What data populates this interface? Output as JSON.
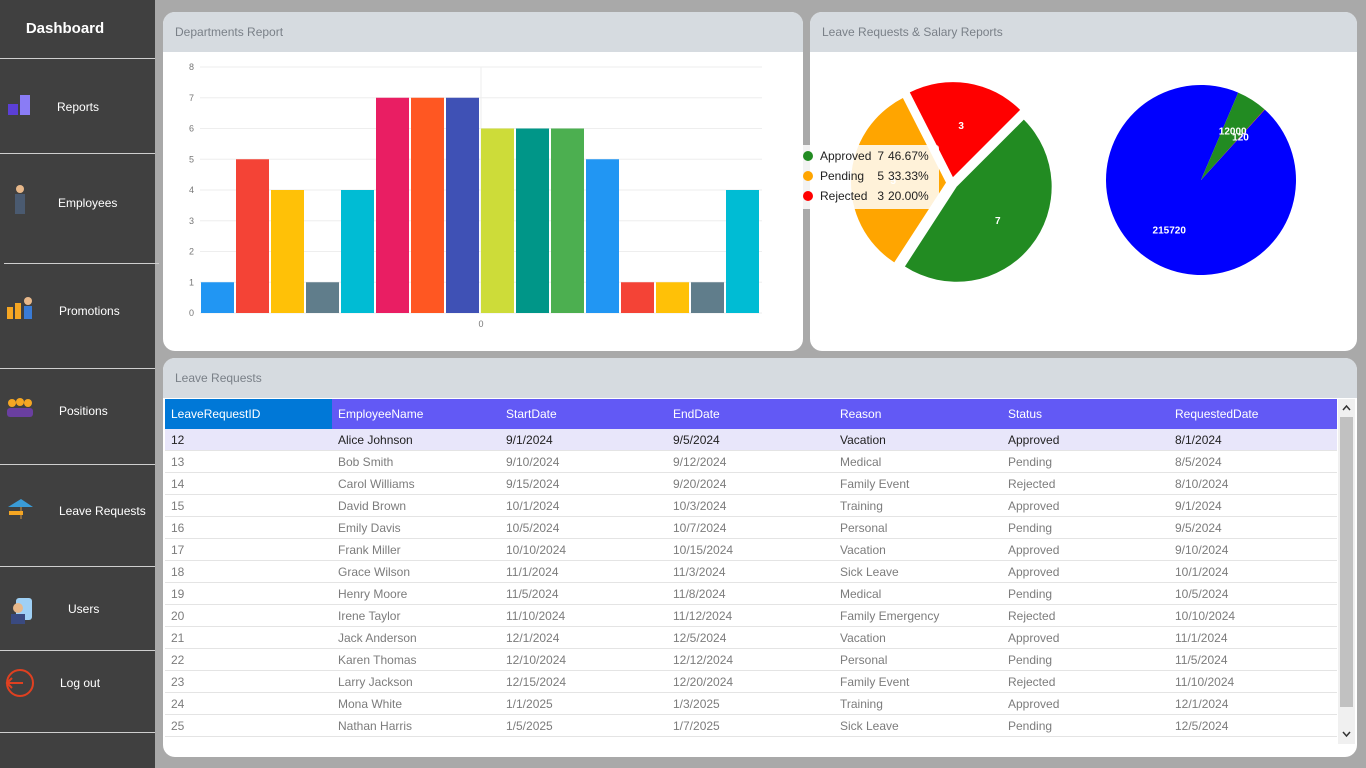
{
  "sidebar": {
    "title": "Dashboard",
    "items": [
      "Reports",
      "Employees",
      "Promotions",
      "Positions",
      "Leave Requests",
      "Users",
      "Log out"
    ]
  },
  "salary_panel_title": "Leave Requests & Salary Reports",
  "chart_data": [
    {
      "type": "bar",
      "title": "Departments Report",
      "categories": [
        "0"
      ],
      "series": [
        {
          "color": "#2196F3",
          "values": [
            1
          ]
        },
        {
          "color": "#F44336",
          "values": [
            5
          ]
        },
        {
          "color": "#FFC107",
          "values": [
            4
          ]
        },
        {
          "color": "#607D8B",
          "values": [
            1
          ]
        },
        {
          "color": "#00BCD4",
          "values": [
            4
          ]
        },
        {
          "color": "#E91E63",
          "values": [
            7
          ]
        },
        {
          "color": "#FF5722",
          "values": [
            7
          ]
        },
        {
          "color": "#3F51B5",
          "values": [
            7
          ]
        },
        {
          "color": "#CDDC39",
          "values": [
            6
          ]
        },
        {
          "color": "#009688",
          "values": [
            6
          ]
        },
        {
          "color": "#4CAF50",
          "values": [
            6
          ]
        },
        {
          "color": "#2196F3",
          "values": [
            5
          ]
        },
        {
          "color": "#F44336",
          "values": [
            1
          ]
        },
        {
          "color": "#FFC107",
          "values": [
            1
          ]
        },
        {
          "color": "#607D8B",
          "values": [
            1
          ]
        },
        {
          "color": "#00BCD4",
          "values": [
            4
          ]
        }
      ],
      "ylim": [
        0,
        8
      ],
      "yticks": [
        0,
        1,
        2,
        3,
        4,
        5,
        6,
        7,
        8
      ],
      "grid": true
    },
    {
      "type": "pie",
      "categories": [
        "Approved",
        "Pending",
        "Rejected"
      ],
      "values": [
        7,
        5,
        3
      ],
      "percent_labels": [
        "46.67%",
        "33.33%",
        "20.00%"
      ],
      "colors": [
        "#228B22",
        "#FFA500",
        "#FF0000"
      ],
      "legend": "top-left"
    },
    {
      "type": "pie",
      "values": [
        215720,
        12000,
        120
      ],
      "colors": [
        "#0000FF",
        "#228B22",
        "#FF0000"
      ]
    }
  ],
  "table": {
    "title": "Leave Requests",
    "columns": [
      "LeaveRequestID",
      "EmployeeName",
      "StartDate",
      "EndDate",
      "Reason",
      "Status",
      "RequestedDate"
    ],
    "rows": [
      [
        "12",
        "Alice Johnson",
        "9/1/2024",
        "9/5/2024",
        "Vacation",
        "Approved",
        "8/1/2024"
      ],
      [
        "13",
        "Bob Smith",
        "9/10/2024",
        "9/12/2024",
        "Medical",
        "Pending",
        "8/5/2024"
      ],
      [
        "14",
        "Carol Williams",
        "9/15/2024",
        "9/20/2024",
        "Family Event",
        "Rejected",
        "8/10/2024"
      ],
      [
        "15",
        "David Brown",
        "10/1/2024",
        "10/3/2024",
        "Training",
        "Approved",
        "9/1/2024"
      ],
      [
        "16",
        "Emily Davis",
        "10/5/2024",
        "10/7/2024",
        "Personal",
        "Pending",
        "9/5/2024"
      ],
      [
        "17",
        "Frank Miller",
        "10/10/2024",
        "10/15/2024",
        "Vacation",
        "Approved",
        "9/10/2024"
      ],
      [
        "18",
        "Grace Wilson",
        "11/1/2024",
        "11/3/2024",
        "Sick Leave",
        "Approved",
        "10/1/2024"
      ],
      [
        "19",
        "Henry Moore",
        "11/5/2024",
        "11/8/2024",
        "Medical",
        "Pending",
        "10/5/2024"
      ],
      [
        "20",
        "Irene Taylor",
        "11/10/2024",
        "11/12/2024",
        "Family Emergency",
        "Rejected",
        "10/10/2024"
      ],
      [
        "21",
        "Jack Anderson",
        "12/1/2024",
        "12/5/2024",
        "Vacation",
        "Approved",
        "11/1/2024"
      ],
      [
        "22",
        "Karen Thomas",
        "12/10/2024",
        "12/12/2024",
        "Personal",
        "Pending",
        "11/5/2024"
      ],
      [
        "23",
        "Larry Jackson",
        "12/15/2024",
        "12/20/2024",
        "Family Event",
        "Rejected",
        "11/10/2024"
      ],
      [
        "24",
        "Mona White",
        "1/1/2025",
        "1/3/2025",
        "Training",
        "Approved",
        "12/1/2024"
      ],
      [
        "25",
        "Nathan Harris",
        "1/5/2025",
        "1/7/2025",
        "Sick Leave",
        "Pending",
        "12/5/2024"
      ]
    ]
  }
}
